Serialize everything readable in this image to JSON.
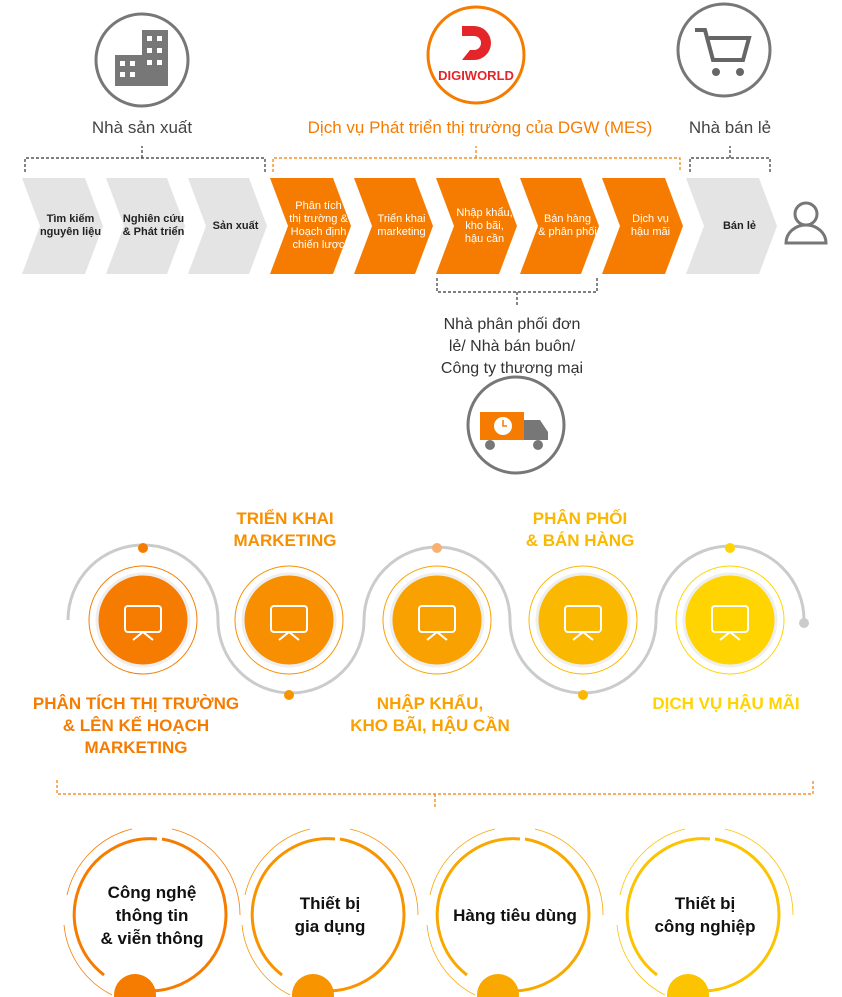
{
  "top": {
    "manufacturer_label": "Nhà sản xuất",
    "dgw_label": "Dịch vụ Phát triển thị trường của DGW (MES)",
    "retailer_label": "Nhà bán lẻ",
    "logo_text": "DIGIWORLD",
    "icons": [
      "building-icon",
      "digiworld-logo",
      "shopping-cart-icon"
    ]
  },
  "chain": [
    {
      "label": "Tìm kiếm\nnguyên liệu",
      "highlight": false
    },
    {
      "label": "Nghiên cứu\n& Phát triển",
      "highlight": false
    },
    {
      "label": "Sản xuất",
      "highlight": false
    },
    {
      "label": "Phân tích\nthị trường &\nHoạch định\nchiến lược",
      "highlight": true
    },
    {
      "label": "Triển khai\nmarketing",
      "highlight": true
    },
    {
      "label": "Nhập khẩu,\nkho bãi,\nhậu cần",
      "highlight": true
    },
    {
      "label": "Bán hàng\n& phân phối",
      "highlight": true
    },
    {
      "label": "Dịch vụ\nhậu mãi",
      "highlight": true
    },
    {
      "label": "Bán lẻ",
      "highlight": false
    }
  ],
  "distributor_label": "Nhà phân phối đơn\nlẻ/ Nhà bán buôn/\nCông ty thương mại",
  "services": [
    {
      "label": "PHÂN TÍCH THỊ TRƯỜNG\n& LÊN KẾ HOẠCH\nMARKETING",
      "icon": "presentation-chart-icon",
      "color": "#F57C00"
    },
    {
      "label": "TRIỂN KHAI\nMARKETING",
      "icon": "megaphone-icon",
      "color": "#F78F00"
    },
    {
      "label": "NHẬP KHẨU,\nKHO BÃI, HẬU CẦN",
      "icon": "plane-boxes-icon",
      "color": "#F9A100"
    },
    {
      "label": "PHÂN PHỐI\n& BÁN HÀNG",
      "icon": "globe-truck-icon",
      "color": "#FBB800"
    },
    {
      "label": "DỊCH VỤ HẬU MÃI",
      "icon": "headset-agent-icon",
      "color": "#FFD400"
    }
  ],
  "categories": [
    {
      "label": "Công nghệ\nthông tin\n& viễn thông",
      "color": "#F57C00"
    },
    {
      "label": "Thiết bị\ngia dụng",
      "color": "#F79400"
    },
    {
      "label": "Hàng tiêu dùng",
      "color": "#F9A800"
    },
    {
      "label": "Thiết bị\ncông nghiệp",
      "color": "#FBC300"
    }
  ],
  "colors": {
    "orange": "#F57C00",
    "gray_chevron": "#E4E4E4",
    "gray_line": "#C9CCCB"
  }
}
